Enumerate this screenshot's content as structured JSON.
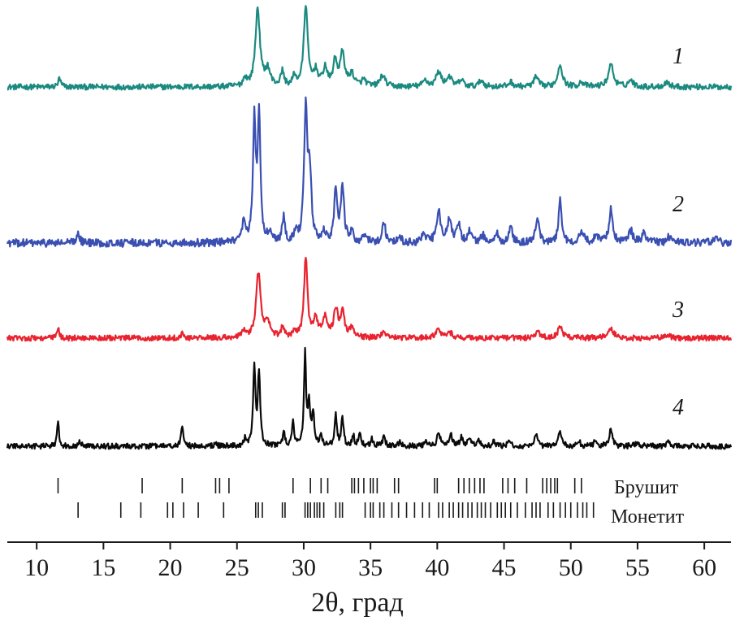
{
  "chart_data": {
    "type": "line",
    "title": "",
    "xlabel": "2θ, град",
    "ylabel": "",
    "xlim": [
      7.8,
      62
    ],
    "xticks": [
      10,
      15,
      20,
      25,
      30,
      35,
      40,
      45,
      50,
      55,
      60
    ],
    "y_axis_shown": false,
    "grid": false,
    "series": [
      {
        "label": "1",
        "color": "#1a8a80",
        "baseline": 0.06,
        "noise": 0.035,
        "peaks": [
          [
            11.7,
            0.1,
            0.12
          ],
          [
            25.6,
            0.1,
            0.15
          ],
          [
            26.55,
            0.96,
            0.2
          ],
          [
            27.3,
            0.2,
            0.22
          ],
          [
            28.4,
            0.18,
            0.14
          ],
          [
            29.3,
            0.12,
            0.14
          ],
          [
            30.15,
            1.0,
            0.17
          ],
          [
            30.9,
            0.18,
            0.2
          ],
          [
            31.6,
            0.22,
            0.18
          ],
          [
            32.35,
            0.3,
            0.18
          ],
          [
            32.9,
            0.4,
            0.2
          ],
          [
            33.6,
            0.15,
            0.2
          ],
          [
            34.5,
            0.08,
            0.2
          ],
          [
            35.9,
            0.14,
            0.22
          ],
          [
            39.1,
            0.08,
            0.2
          ],
          [
            40.1,
            0.18,
            0.24
          ],
          [
            40.9,
            0.12,
            0.2
          ],
          [
            41.8,
            0.08,
            0.2
          ],
          [
            43.3,
            0.08,
            0.2
          ],
          [
            45.5,
            0.06,
            0.2
          ],
          [
            47.4,
            0.12,
            0.2
          ],
          [
            49.2,
            0.28,
            0.2
          ],
          [
            50.8,
            0.06,
            0.2
          ],
          [
            53.0,
            0.28,
            0.22
          ],
          [
            54.5,
            0.08,
            0.22
          ],
          [
            57.2,
            0.06,
            0.22
          ]
        ]
      },
      {
        "label": "2",
        "color": "#3a4fb2",
        "baseline": 0.05,
        "noise": 0.03,
        "peaks": [
          [
            13.1,
            0.09,
            0.12
          ],
          [
            25.5,
            0.16,
            0.12
          ],
          [
            26.3,
            0.92,
            0.12
          ],
          [
            26.65,
            0.96,
            0.12
          ],
          [
            27.5,
            0.08,
            0.16
          ],
          [
            28.5,
            0.2,
            0.12
          ],
          [
            29.4,
            0.08,
            0.12
          ],
          [
            30.15,
            1.0,
            0.14
          ],
          [
            30.45,
            0.5,
            0.14
          ],
          [
            31.5,
            0.07,
            0.16
          ],
          [
            32.4,
            0.4,
            0.14
          ],
          [
            32.9,
            0.42,
            0.14
          ],
          [
            33.6,
            0.08,
            0.16
          ],
          [
            34.6,
            0.05,
            0.16
          ],
          [
            36.0,
            0.17,
            0.14
          ],
          [
            37.2,
            0.04,
            0.16
          ],
          [
            39.0,
            0.07,
            0.16
          ],
          [
            40.1,
            0.24,
            0.18
          ],
          [
            40.9,
            0.18,
            0.16
          ],
          [
            41.6,
            0.14,
            0.16
          ],
          [
            42.4,
            0.08,
            0.16
          ],
          [
            43.4,
            0.06,
            0.16
          ],
          [
            44.5,
            0.06,
            0.16
          ],
          [
            45.5,
            0.11,
            0.16
          ],
          [
            47.5,
            0.17,
            0.16
          ],
          [
            49.2,
            0.32,
            0.14
          ],
          [
            50.8,
            0.09,
            0.18
          ],
          [
            51.9,
            0.06,
            0.18
          ],
          [
            53.0,
            0.26,
            0.16
          ],
          [
            54.5,
            0.09,
            0.18
          ],
          [
            55.5,
            0.08,
            0.18
          ],
          [
            57.4,
            0.05,
            0.2
          ],
          [
            60.8,
            0.04,
            0.2
          ]
        ]
      },
      {
        "label": "3",
        "color": "#e8232f",
        "baseline": 0.08,
        "noise": 0.035,
        "peaks": [
          [
            11.6,
            0.12,
            0.1
          ],
          [
            20.9,
            0.06,
            0.12
          ],
          [
            25.5,
            0.08,
            0.16
          ],
          [
            26.6,
            0.82,
            0.2
          ],
          [
            27.3,
            0.18,
            0.22
          ],
          [
            28.4,
            0.12,
            0.14
          ],
          [
            29.3,
            0.1,
            0.14
          ],
          [
            30.15,
            1.0,
            0.15
          ],
          [
            30.9,
            0.22,
            0.2
          ],
          [
            31.6,
            0.25,
            0.2
          ],
          [
            32.4,
            0.35,
            0.18
          ],
          [
            32.9,
            0.32,
            0.18
          ],
          [
            33.6,
            0.12,
            0.2
          ],
          [
            36.0,
            0.08,
            0.22
          ],
          [
            40.1,
            0.09,
            0.28
          ],
          [
            41.0,
            0.06,
            0.22
          ],
          [
            47.5,
            0.07,
            0.22
          ],
          [
            49.2,
            0.12,
            0.26
          ],
          [
            53.0,
            0.12,
            0.26
          ],
          [
            57.2,
            0.04,
            0.22
          ]
        ]
      },
      {
        "label": "4",
        "color": "#0a0a0a",
        "baseline": 0.05,
        "noise": 0.03,
        "peaks": [
          [
            11.6,
            0.3,
            0.08
          ],
          [
            13.2,
            0.06,
            0.1
          ],
          [
            20.9,
            0.24,
            0.09
          ],
          [
            23.4,
            0.04,
            0.1
          ],
          [
            25.6,
            0.08,
            0.1
          ],
          [
            26.3,
            0.85,
            0.1
          ],
          [
            26.65,
            0.8,
            0.1
          ],
          [
            28.5,
            0.16,
            0.09
          ],
          [
            29.2,
            0.26,
            0.09
          ],
          [
            30.1,
            1.0,
            0.09
          ],
          [
            30.4,
            0.45,
            0.1
          ],
          [
            30.7,
            0.35,
            0.1
          ],
          [
            31.3,
            0.12,
            0.1
          ],
          [
            32.4,
            0.34,
            0.1
          ],
          [
            32.9,
            0.3,
            0.1
          ],
          [
            33.7,
            0.12,
            0.1
          ],
          [
            34.2,
            0.14,
            0.1
          ],
          [
            35.1,
            0.08,
            0.1
          ],
          [
            36.0,
            0.1,
            0.12
          ],
          [
            37.2,
            0.05,
            0.12
          ],
          [
            39.1,
            0.06,
            0.12
          ],
          [
            40.1,
            0.15,
            0.14
          ],
          [
            41.0,
            0.14,
            0.12
          ],
          [
            41.8,
            0.1,
            0.12
          ],
          [
            42.4,
            0.08,
            0.12
          ],
          [
            43.1,
            0.07,
            0.12
          ],
          [
            44.2,
            0.05,
            0.12
          ],
          [
            45.4,
            0.06,
            0.12
          ],
          [
            47.4,
            0.12,
            0.12
          ],
          [
            49.2,
            0.18,
            0.12
          ],
          [
            50.6,
            0.06,
            0.12
          ],
          [
            51.8,
            0.05,
            0.12
          ],
          [
            53.0,
            0.18,
            0.14
          ],
          [
            55.0,
            0.05,
            0.14
          ],
          [
            57.3,
            0.04,
            0.14
          ]
        ]
      }
    ],
    "reference_markers": [
      {
        "name": "Брушит",
        "positions": [
          11.6,
          17.9,
          20.9,
          23.4,
          23.7,
          24.4,
          29.2,
          30.5,
          31.3,
          31.8,
          33.6,
          33.8,
          34.1,
          34.5,
          35.0,
          35.2,
          35.5,
          36.8,
          37.1,
          39.8,
          40.0,
          41.6,
          42.0,
          42.4,
          42.8,
          43.2,
          43.5,
          44.9,
          45.3,
          45.8,
          46.7,
          47.9,
          48.2,
          48.5,
          48.8,
          49.0,
          50.3,
          50.8
        ]
      },
      {
        "name": "Монетит",
        "positions": [
          13.1,
          16.3,
          17.8,
          19.8,
          20.2,
          21.0,
          22.1,
          24.0,
          26.4,
          26.6,
          26.9,
          28.4,
          28.6,
          30.1,
          30.3,
          30.5,
          30.8,
          31.0,
          31.2,
          31.5,
          32.4,
          32.7,
          32.9,
          34.6,
          35.0,
          35.2,
          35.7,
          36.0,
          36.6,
          37.1,
          37.7,
          38.3,
          38.9,
          39.4,
          40.1,
          40.4,
          40.9,
          41.2,
          41.6,
          41.9,
          42.3,
          42.6,
          43.0,
          43.3,
          43.6,
          44.0,
          44.5,
          44.8,
          45.1,
          45.5,
          46.0,
          46.6,
          47.1,
          47.4,
          47.7,
          48.3,
          48.7,
          49.2,
          49.6,
          50.0,
          50.5,
          50.9,
          51.2,
          51.7
        ]
      }
    ]
  }
}
